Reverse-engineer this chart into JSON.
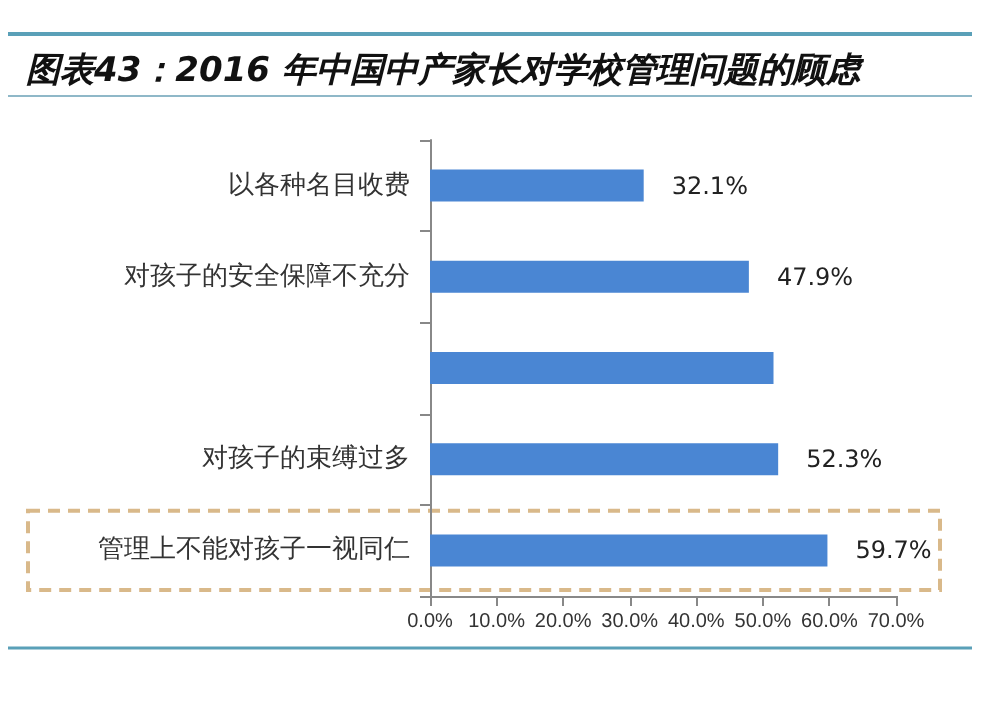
{
  "chart_data": {
    "type": "bar",
    "orientation": "horizontal",
    "title": "图表43：2016 年中国中产家长对学校管理问题的顾虑",
    "categories": [
      "以各种名目收费",
      "对孩子的安全保障不充分",
      null,
      "对孩子的束缚过多",
      "管理上不能对孩子一视同仁"
    ],
    "values": [
      32.1,
      47.9,
      51.6,
      52.3,
      59.7
    ],
    "value_labels": [
      "32.1%",
      "47.9%",
      null,
      "52.3%",
      "59.7%"
    ],
    "color": "#4a86d3",
    "xlim": [
      0,
      70
    ],
    "xticks": [
      {
        "value": 0,
        "label": "0.0%"
      },
      {
        "value": 10,
        "label": "10.0%"
      },
      {
        "value": 20,
        "label": "20.0%"
      },
      {
        "value": 30,
        "label": "30.0%"
      },
      {
        "value": 40,
        "label": "40.0%"
      },
      {
        "value": 50,
        "label": "50.0%"
      },
      {
        "value": 60,
        "label": "60.0%"
      },
      {
        "value": 70,
        "label": "70.0%"
      }
    ],
    "grid": false
  }
}
